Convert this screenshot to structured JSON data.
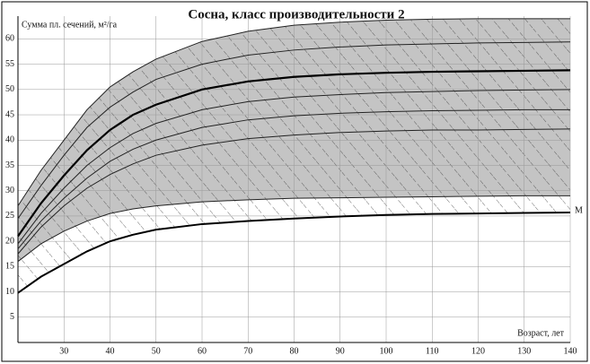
{
  "chart_data": {
    "type": "line",
    "title": "Сосна, класс производительности 2",
    "y_label": "Сумма пл. сечений, м²/га",
    "x_label": "Возраст, лет",
    "annotation": "М",
    "x": [
      20,
      25,
      30,
      35,
      40,
      45,
      50,
      60,
      70,
      80,
      90,
      100,
      110,
      120,
      130,
      140
    ],
    "series": [
      {
        "color": "#222",
        "line_width": 1,
        "values": [
          27,
          34,
          40,
          46,
          50.5,
          53.5,
          56,
          59.5,
          61.5,
          62.7,
          63.3,
          63.7,
          63.9,
          64,
          64,
          64
        ]
      },
      {
        "color": "#222",
        "line_width": 1,
        "values": [
          24.5,
          31,
          37,
          42.5,
          46.5,
          49.5,
          52,
          55,
          56.8,
          57.8,
          58.4,
          58.8,
          59,
          59.2,
          59.3,
          59.4
        ]
      },
      {
        "color": "#000",
        "line_width": 2.2,
        "values": [
          21,
          27.5,
          33,
          38,
          42,
          45,
          47,
          50,
          51.6,
          52.5,
          53,
          53.3,
          53.5,
          53.6,
          53.7,
          53.8
        ]
      },
      {
        "color": "#222",
        "line_width": 1,
        "values": [
          19.5,
          25.5,
          30.5,
          35,
          38.5,
          41.3,
          43.3,
          46,
          47.6,
          48.5,
          49,
          49.4,
          49.6,
          49.8,
          49.9,
          50
        ]
      },
      {
        "color": "#222",
        "line_width": 1,
        "values": [
          18.5,
          24,
          28.5,
          32.5,
          35.8,
          38.2,
          40,
          42.5,
          44,
          44.8,
          45.3,
          45.6,
          45.8,
          45.9,
          46,
          46
        ]
      },
      {
        "color": "#222",
        "line_width": 1,
        "values": [
          17.5,
          22.8,
          27,
          30.5,
          33.2,
          35.3,
          37,
          39,
          40.3,
          41,
          41.5,
          41.8,
          42,
          42,
          42.1,
          42.2
        ]
      },
      {
        "color": "#222",
        "line_width": 1,
        "values": [
          16,
          19.5,
          22,
          24,
          25.5,
          26.4,
          27,
          27.8,
          28.2,
          28.5,
          28.6,
          28.7,
          28.8,
          28.9,
          29,
          29
        ]
      },
      {
        "color": "#000",
        "line_width": 2,
        "values": [
          9.8,
          13,
          15.5,
          18,
          20,
          21.3,
          22.3,
          23.4,
          24,
          24.5,
          24.9,
          25.2,
          25.4,
          25.5,
          25.6,
          25.7
        ]
      }
    ],
    "shade_color": "#c4c4c4",
    "xlim": [
      20,
      140
    ],
    "xticks": [
      30,
      40,
      50,
      60,
      70,
      80,
      90,
      100,
      110,
      120,
      130,
      140
    ],
    "ylim": [
      0,
      64.5
    ],
    "yticks": [
      5,
      10,
      15,
      20,
      25,
      30,
      35,
      40,
      45,
      50,
      55,
      60
    ],
    "grid": true
  }
}
